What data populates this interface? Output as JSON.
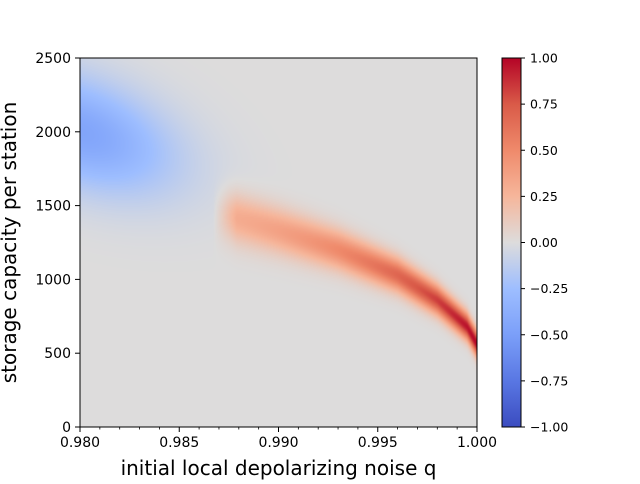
{
  "chart_data": {
    "type": "heatmap",
    "title": "",
    "xlabel": "initial local depolarizing noise q",
    "ylabel": "storage capacity per station",
    "xlim": [
      0.98,
      1.0
    ],
    "ylim": [
      0,
      2500
    ],
    "xticks": [
      0.98,
      0.985,
      0.99,
      0.995,
      1.0
    ],
    "xtick_labels": [
      "0.980",
      "0.985",
      "0.990",
      "0.995",
      "1.000"
    ],
    "yticks": [
      0,
      500,
      1000,
      1500,
      2000,
      2500
    ],
    "ytick_labels": [
      "0",
      "500",
      "1000",
      "1500",
      "2000",
      "2500"
    ],
    "colorbar": {
      "colormap": "coolwarm",
      "range": [
        -1.0,
        1.0
      ],
      "ticks": [
        -1.0,
        -0.75,
        -0.5,
        -0.25,
        0.0,
        0.25,
        0.5,
        0.75,
        1.0
      ],
      "tick_labels": [
        "−1.00",
        "−0.75",
        "−0.50",
        "−0.25",
        "0.00",
        "0.25",
        "0.50",
        "0.75",
        "1.00"
      ]
    },
    "regions": [
      {
        "sign": "negative",
        "peak_value": -0.45,
        "center_q": 0.98,
        "center_capacity": 2000,
        "extends_to_q": 0.987
      },
      {
        "sign": "positive",
        "peak_value": 1.0,
        "ridge": [
          [
            0.9875,
            1430
          ],
          [
            0.99,
            1330
          ],
          [
            0.993,
            1200
          ],
          [
            0.996,
            1030
          ],
          [
            0.998,
            860
          ],
          [
            0.9995,
            680
          ],
          [
            1.0,
            560
          ]
        ]
      }
    ],
    "background_value": 0.0,
    "grid": false,
    "legend": "colorbar-right"
  }
}
